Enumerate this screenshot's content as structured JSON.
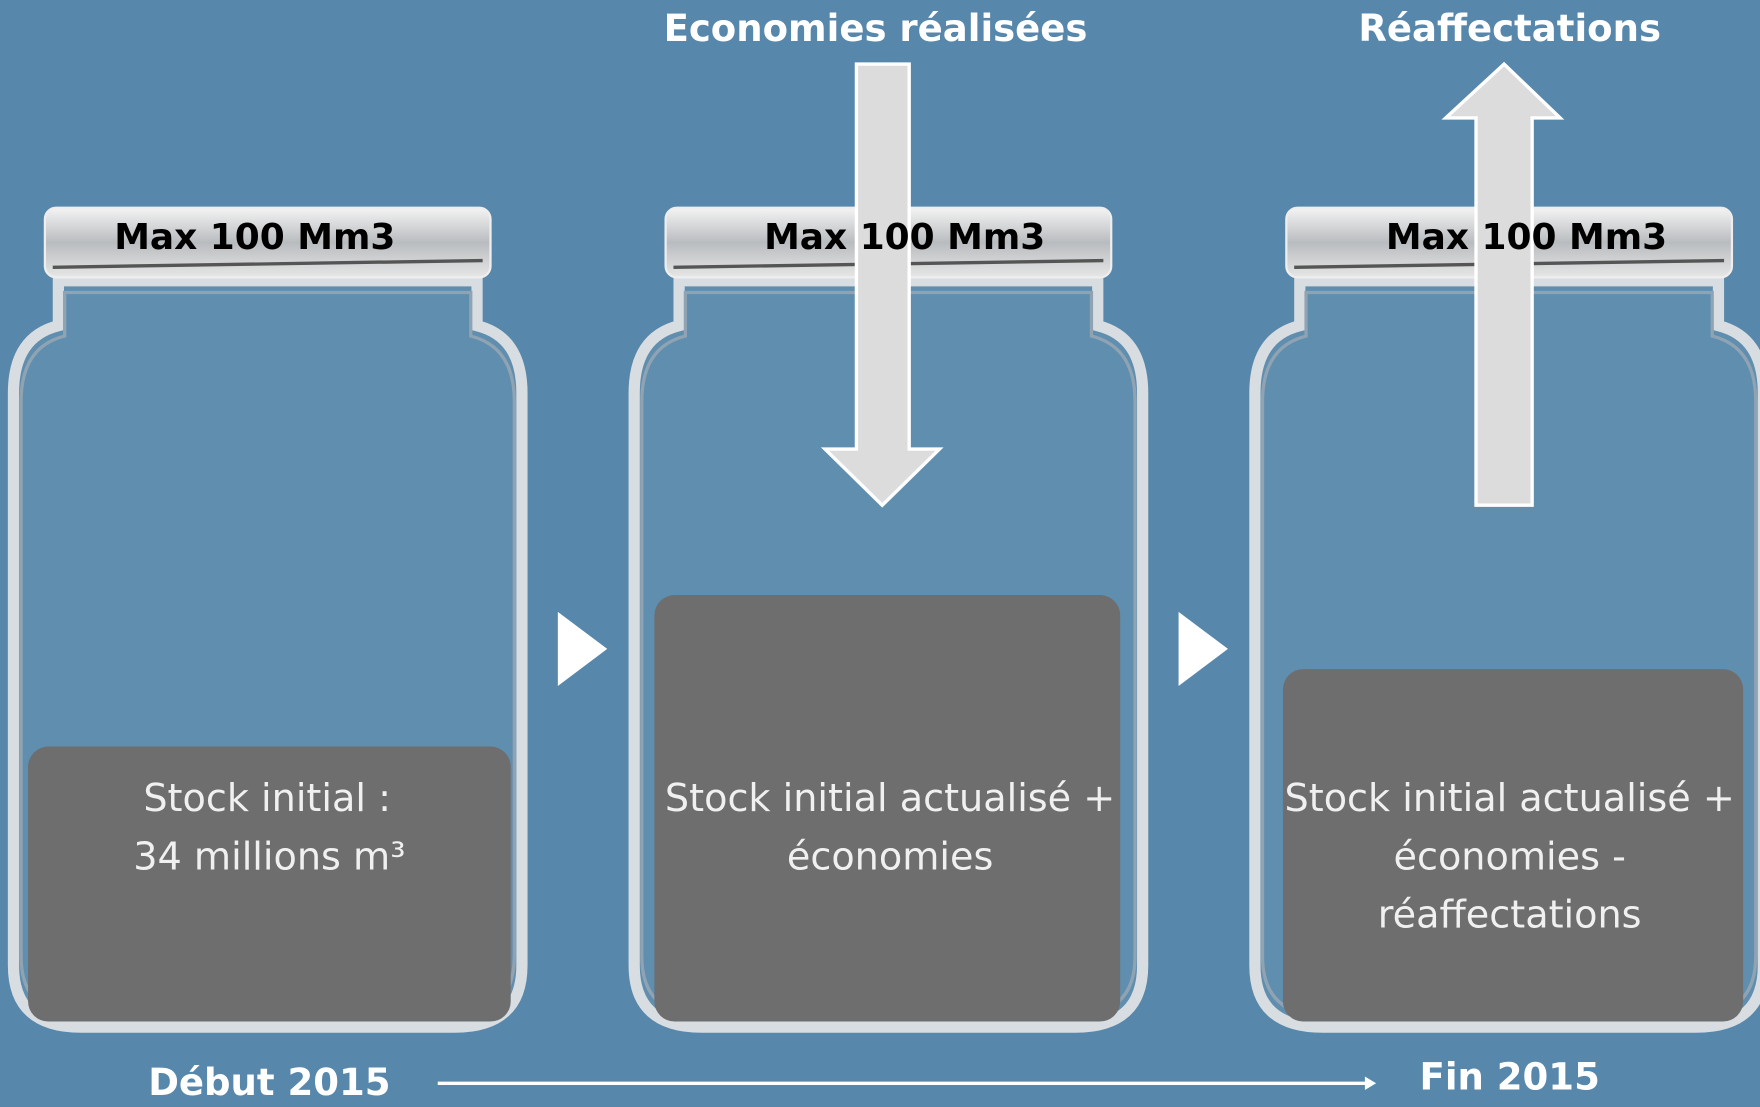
{
  "labels": {
    "savings": "Economies réalisées",
    "reallocations": "Réaffectations"
  },
  "jars": [
    {
      "capacity": "Max 100 Mm3",
      "content": [
        "Stock initial :",
        "34 millions m³"
      ]
    },
    {
      "capacity": "Max 100 Mm3",
      "content": [
        "Stock initial actualisé +",
        "économies"
      ]
    },
    {
      "capacity": "Max 100 Mm3",
      "content": [
        "Stock initial actualisé +",
        "économies -",
        "réaffectations"
      ]
    }
  ],
  "timeline": {
    "start": "Début 2015",
    "end": "Fin 2015"
  }
}
